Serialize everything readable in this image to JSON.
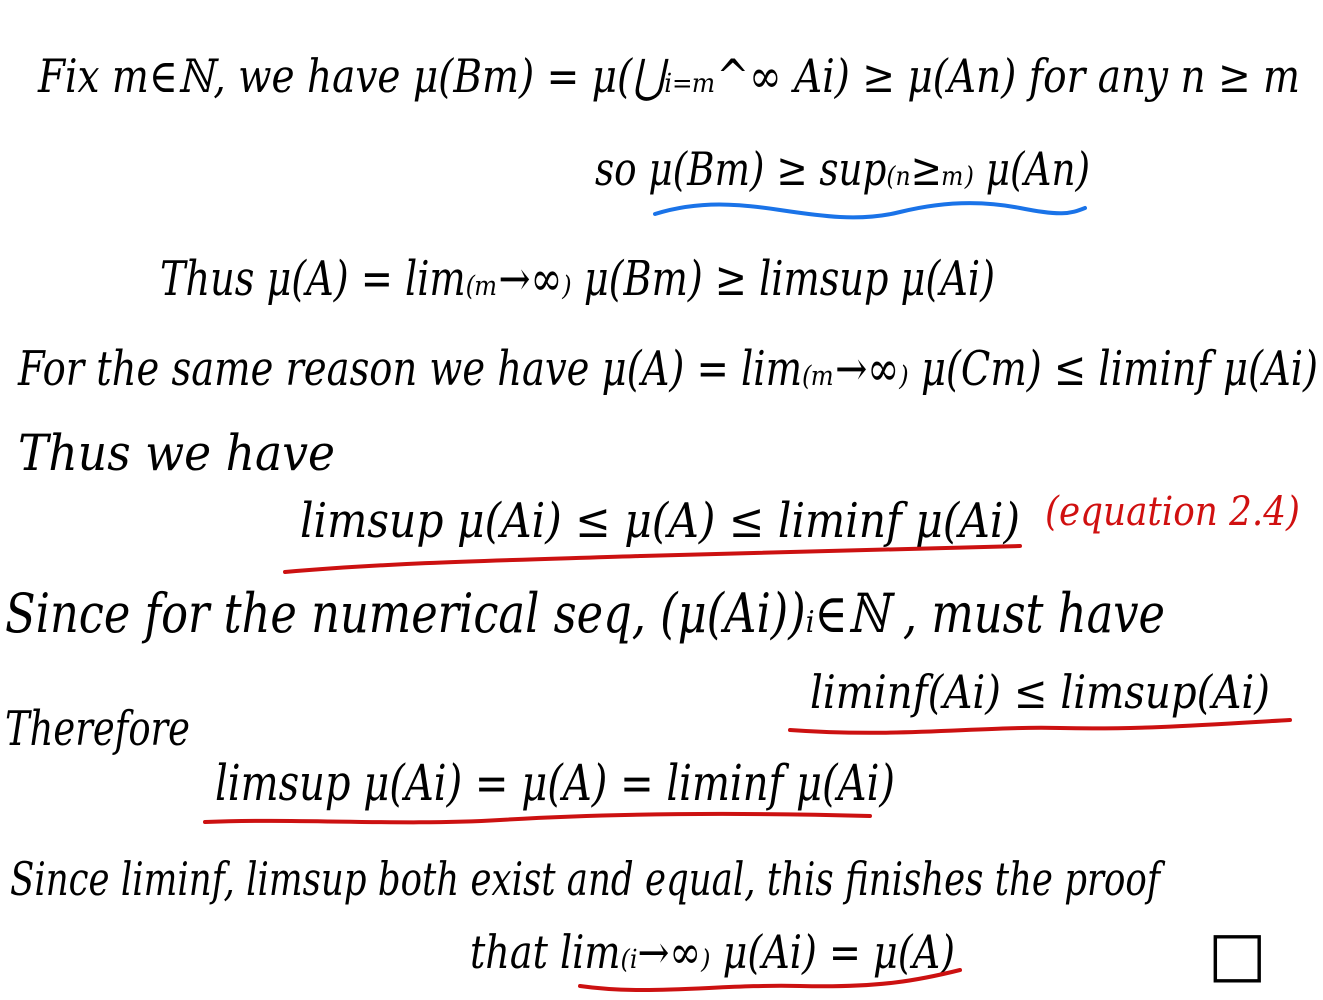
{
  "lines": [
    "Fix m∈ℕ, we have μ(Bm) = μ(⋃ᵢ₌ₘ^∞ Ai) ≥ μ(An) for any n ≥ m",
    "so μ(Bm) ≥ sup₍ₙ≥ₘ₎ μ(An)",
    "Thus μ(A) = lim₍ₘ→∞₎ μ(Bm) ≥ limsup μ(Ai)",
    "For the same reason we have μ(A) = lim₍ₘ→∞₎ μ(Cm) ≤ liminf μ(Ai)",
    "Thus we have",
    "limsup μ(Ai) ≤ μ(A) ≤ liminf μ(Ai)",
    "Since for the numerical seq, (μ(Ai))ᵢ∈ℕ , must have",
    "liminf(Ai) ≤ limsup(Ai)",
    "Therefore",
    "limsup μ(Ai) = μ(A) = liminf μ(Ai)",
    "Since liminf, limsup both exist and equal, this finishes the proof",
    "that lim₍ᵢ→∞₎ μ(Ai) = μ(A)"
  ],
  "annotation": "(equation 2.4)",
  "qed": "□"
}
